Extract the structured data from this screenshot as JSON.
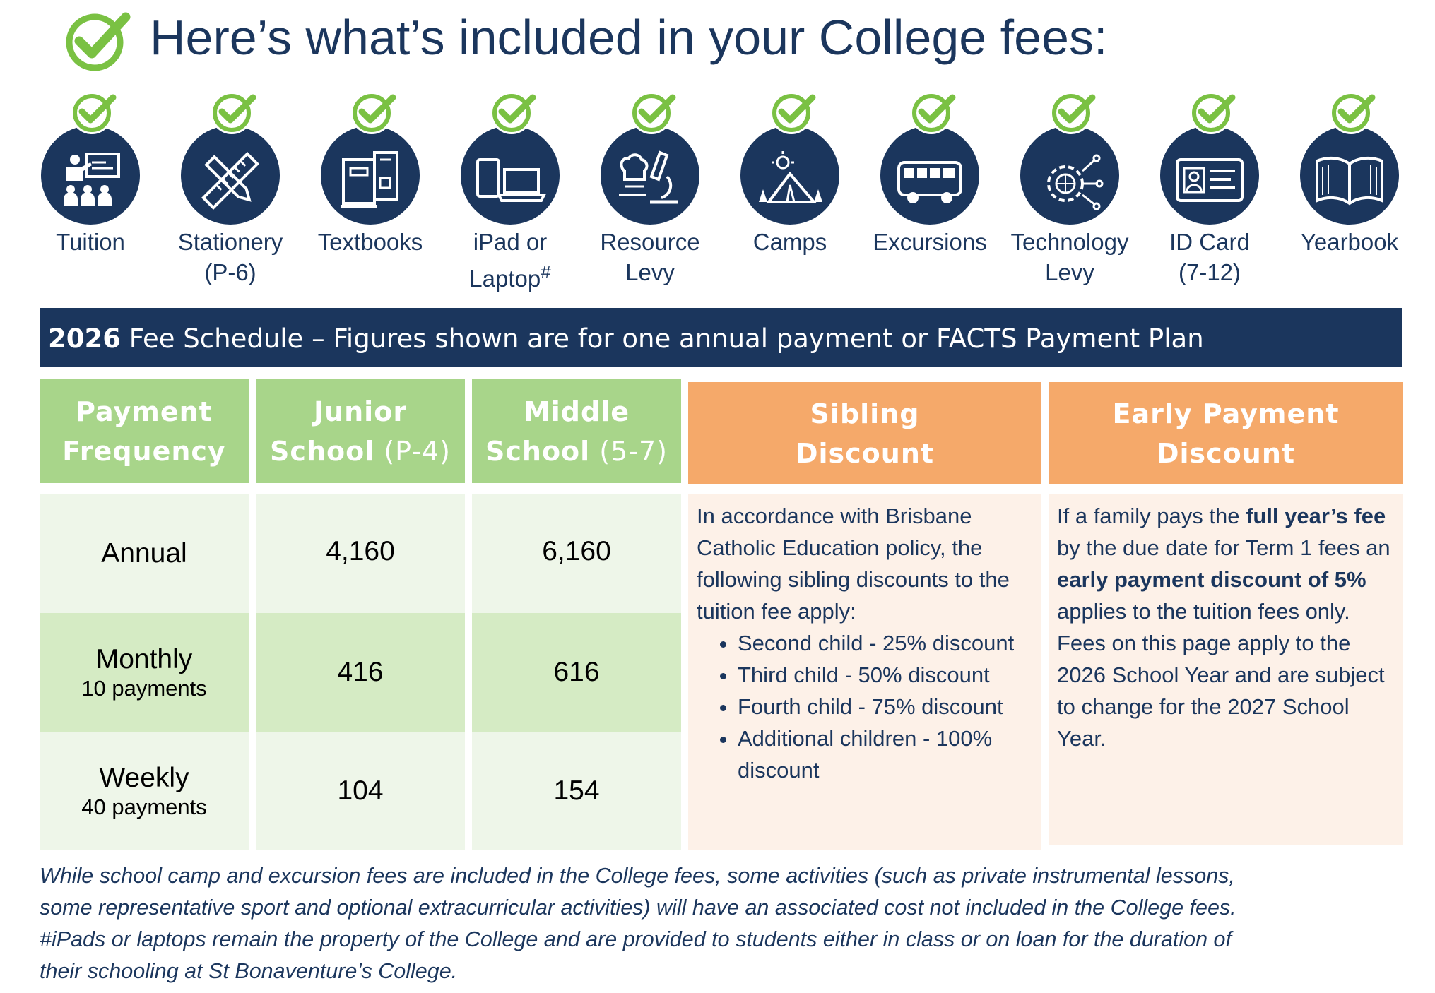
{
  "title": "Here’s what’s included in your College fees:",
  "colors": {
    "navy": "#1b365d",
    "check_green": "#7ac143",
    "header_green": "#a8d58a",
    "header_orange": "#f5a96a"
  },
  "included_items": [
    {
      "label_line1": "Tuition",
      "label_line2": "",
      "icon": "teacher-presentation-icon"
    },
    {
      "label_line1": "Stationery",
      "label_line2": "(P-6)",
      "icon": "pencil-ruler-icon"
    },
    {
      "label_line1": "Textbooks",
      "label_line2": "",
      "icon": "books-icon"
    },
    {
      "label_line1": "iPad or",
      "label_line2": "Laptop",
      "label_sup": "#",
      "icon": "tablet-laptop-icon"
    },
    {
      "label_line1": "Resource",
      "label_line2": "Levy",
      "icon": "chef-microscope-icon"
    },
    {
      "label_line1": "Camps",
      "label_line2": "",
      "icon": "tent-icon"
    },
    {
      "label_line1": "Excursions",
      "label_line2": "",
      "icon": "bus-icon"
    },
    {
      "label_line1": "Technology",
      "label_line2": "Levy",
      "icon": "gear-globe-icon"
    },
    {
      "label_line1": "ID Card",
      "label_line2": "(7-12)",
      "icon": "id-card-icon"
    },
    {
      "label_line1": "Yearbook",
      "label_line2": "",
      "icon": "open-book-icon"
    }
  ],
  "banner": {
    "year": "2026",
    "text": " Fee Schedule – Figures shown are for one annual payment or FACTS Payment Plan"
  },
  "table": {
    "headers": {
      "frequency": {
        "line1": "Payment",
        "line2": "Frequency"
      },
      "junior": {
        "line1": "Junior",
        "line2_bold": "School",
        "line2_thin": " (P-4)"
      },
      "middle": {
        "line1": "Middle",
        "line2_bold": "School",
        "line2_thin": " (5-7)"
      },
      "sibling": {
        "line1": "Sibling",
        "line2": "Discount"
      },
      "early": {
        "line1": "Early Payment",
        "line2": "Discount"
      }
    },
    "rows": [
      {
        "frequency": "Annual",
        "sub": "",
        "junior": "4,160",
        "middle": "6,160"
      },
      {
        "frequency": "Monthly",
        "sub": "10 payments",
        "junior": "416",
        "middle": "616"
      },
      {
        "frequency": "Weekly",
        "sub": "40 payments",
        "junior": "104",
        "middle": "154"
      }
    ],
    "sibling_text": {
      "intro": "In accordance with Brisbane Catholic Education policy, the following sibling discounts to the tuition fee apply:",
      "items": [
        "Second child - 25% discount",
        "Third child - 50% discount",
        "Fourth child - 75% discount",
        "Additional children - 100% discount"
      ]
    },
    "early_text": {
      "p1": "If a family pays the ",
      "b1": "full year’s fee",
      "p2": " by the due date for Term 1 fees an ",
      "b2": "early payment discount of 5%",
      "p3": " applies to the tuition fees only. Fees on this page apply to the 2026 School Year and are subject to change for the 2027 School Year."
    }
  },
  "footnote": {
    "line1": "While school camp and excursion fees are included in the College fees, some activities (such as private instrumental lessons,",
    "line2": "some representative sport and optional extracurricular activities) will have an associated cost not included in the College fees.",
    "line3": "#iPads or laptops remain the property of  the College and are provided to students either in class or on loan for the duration of",
    "line4": "their schooling at St Bonaventure’s College."
  }
}
